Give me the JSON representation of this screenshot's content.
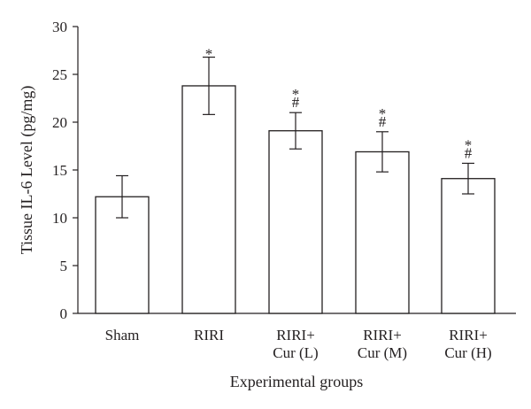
{
  "chart_data": {
    "type": "bar",
    "title": "",
    "xlabel": "Experimental groups",
    "ylabel": "Tissue IL-6 Level (pg/mg)",
    "ylim": [
      0,
      30
    ],
    "yticks": [
      0,
      5,
      10,
      15,
      20,
      25,
      30
    ],
    "categories": [
      [
        "Sham"
      ],
      [
        "RIRI"
      ],
      [
        "RIRI+",
        "Cur (L)"
      ],
      [
        "RIRI+",
        "Cur (M)"
      ],
      [
        "RIRI+",
        "Cur (H)"
      ]
    ],
    "values": [
      12.2,
      23.8,
      19.1,
      16.9,
      14.1
    ],
    "error": [
      2.2,
      3.0,
      1.9,
      2.1,
      1.6
    ],
    "annotations": [
      [],
      [
        "*"
      ],
      [
        "*",
        "#"
      ],
      [
        "*",
        "#"
      ],
      [
        "*",
        "#"
      ]
    ],
    "colors": {
      "bar_fill": "#ffffff",
      "stroke": "#231f20"
    },
    "grid": false,
    "legend": "none"
  }
}
